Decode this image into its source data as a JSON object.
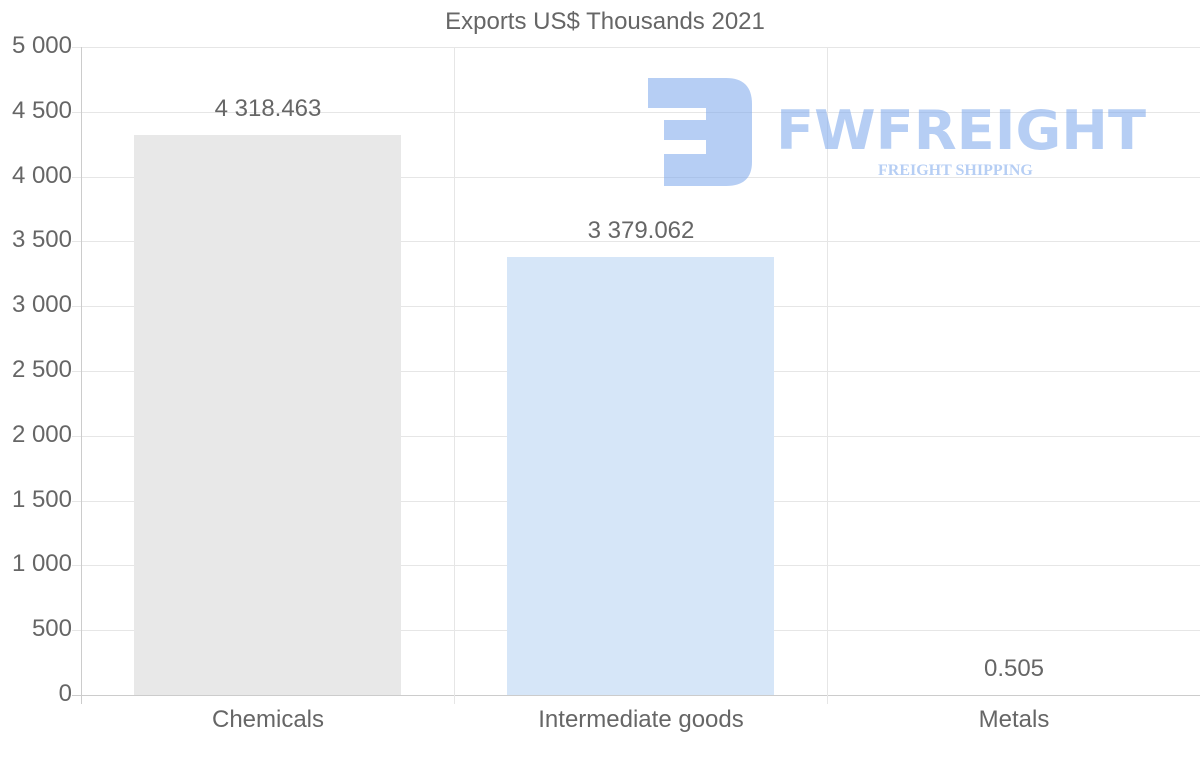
{
  "chart_data": {
    "type": "bar",
    "title": "Exports US$ Thousands 2021",
    "categories": [
      "Chemicals",
      "Intermediate goods",
      "Metals"
    ],
    "values": [
      4318.463,
      3379.062,
      0.505
    ],
    "value_labels": [
      "4 318.463",
      "3 379.062",
      "0.505"
    ],
    "bar_colors": [
      "#e8e8e8",
      "#d6e6f8",
      "#e8e8e8"
    ],
    "xlabel": "",
    "ylabel": "",
    "ylim": [
      0,
      5000
    ],
    "yticks": [
      0,
      500,
      1000,
      1500,
      2000,
      2500,
      3000,
      3500,
      4000,
      4500,
      5000
    ],
    "ytick_labels": [
      "0",
      "500",
      "1 000",
      "1 500",
      "2 000",
      "2 500",
      "3 000",
      "3 500",
      "4 000",
      "4 500",
      "5 000"
    ],
    "grid": true,
    "legend": "none"
  },
  "watermark": {
    "brand": "FWFREIGHT",
    "tagline": "FREIGHT SHIPPING",
    "color": "#7ba7ec"
  }
}
